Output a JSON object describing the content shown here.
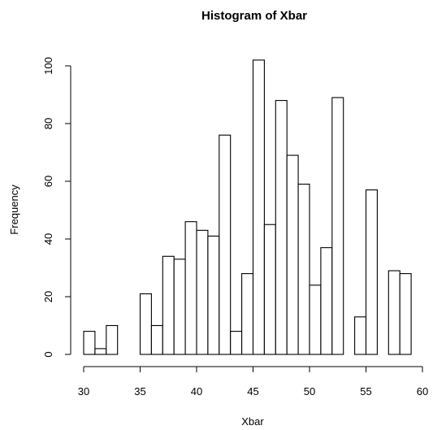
{
  "chart_data": {
    "type": "bar",
    "title": "Histogram of Xbar",
    "xlabel": "Xbar",
    "ylabel": "Frequency",
    "xlim": [
      30,
      60
    ],
    "ylim": [
      0,
      104
    ],
    "xticks": [
      30,
      35,
      40,
      45,
      50,
      55,
      60
    ],
    "yticks": [
      0,
      20,
      40,
      60,
      80,
      100
    ],
    "bin_width": 1,
    "bins": [
      {
        "start": 30,
        "end": 31,
        "count": 8
      },
      {
        "start": 31,
        "end": 32,
        "count": 2
      },
      {
        "start": 32,
        "end": 33,
        "count": 10
      },
      {
        "start": 33,
        "end": 34,
        "count": 0
      },
      {
        "start": 34,
        "end": 35,
        "count": 0
      },
      {
        "start": 35,
        "end": 36,
        "count": 21
      },
      {
        "start": 36,
        "end": 37,
        "count": 10
      },
      {
        "start": 37,
        "end": 38,
        "count": 34
      },
      {
        "start": 38,
        "end": 39,
        "count": 33
      },
      {
        "start": 39,
        "end": 40,
        "count": 46
      },
      {
        "start": 40,
        "end": 41,
        "count": 43
      },
      {
        "start": 41,
        "end": 42,
        "count": 41
      },
      {
        "start": 42,
        "end": 43,
        "count": 76
      },
      {
        "start": 43,
        "end": 44,
        "count": 8
      },
      {
        "start": 44,
        "end": 45,
        "count": 28
      },
      {
        "start": 45,
        "end": 46,
        "count": 102
      },
      {
        "start": 46,
        "end": 47,
        "count": 45
      },
      {
        "start": 47,
        "end": 48,
        "count": 88
      },
      {
        "start": 48,
        "end": 49,
        "count": 69
      },
      {
        "start": 49,
        "end": 50,
        "count": 59
      },
      {
        "start": 50,
        "end": 51,
        "count": 24
      },
      {
        "start": 51,
        "end": 52,
        "count": 37
      },
      {
        "start": 52,
        "end": 53,
        "count": 89
      },
      {
        "start": 53,
        "end": 54,
        "count": 0
      },
      {
        "start": 54,
        "end": 55,
        "count": 13
      },
      {
        "start": 55,
        "end": 56,
        "count": 57
      },
      {
        "start": 56,
        "end": 57,
        "count": 0
      },
      {
        "start": 57,
        "end": 58,
        "count": 29
      },
      {
        "start": 58,
        "end": 59,
        "count": 28
      }
    ],
    "grid": false,
    "colors": {
      "bar_fill": "#ffffff",
      "bar_stroke": "#000000"
    }
  }
}
